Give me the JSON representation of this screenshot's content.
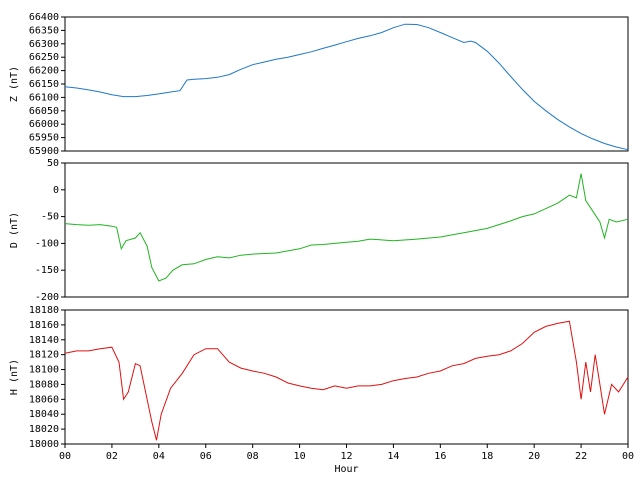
{
  "chart_data": [
    {
      "type": "line",
      "ylabel": "Z (nT)",
      "color": "#1f78c8",
      "xlim": [
        0,
        24
      ],
      "ylim": [
        65900,
        66400
      ],
      "yticks": [
        65900,
        65950,
        66000,
        66050,
        66100,
        66150,
        66200,
        66250,
        66300,
        66350,
        66400
      ],
      "x": [
        0,
        0.5,
        1,
        1.5,
        2,
        2.5,
        3,
        3.5,
        4,
        4.5,
        4.9,
        5.2,
        5.5,
        6,
        6.5,
        7,
        7.5,
        8,
        8.5,
        9,
        9.5,
        10,
        10.5,
        11,
        11.5,
        12,
        12.5,
        13,
        13.5,
        14,
        14.5,
        15,
        15.5,
        16,
        16.5,
        17,
        17.3,
        17.5,
        18,
        18.5,
        19,
        19.5,
        20,
        20.5,
        21,
        21.5,
        22,
        22.5,
        23,
        23.5,
        24
      ],
      "values": [
        66140,
        66135,
        66128,
        66120,
        66110,
        66103,
        66103,
        66107,
        66113,
        66120,
        66125,
        66165,
        66168,
        66170,
        66175,
        66185,
        66205,
        66222,
        66232,
        66242,
        66250,
        66260,
        66270,
        66283,
        66295,
        66308,
        66320,
        66330,
        66342,
        66360,
        66373,
        66372,
        66360,
        66342,
        66323,
        66305,
        66310,
        66305,
        66272,
        66228,
        66178,
        66130,
        66085,
        66050,
        66018,
        65990,
        65965,
        65945,
        65928,
        65915,
        65905
      ]
    },
    {
      "type": "line",
      "ylabel": "D (nT)",
      "color": "#22b422",
      "xlim": [
        0,
        24
      ],
      "ylim": [
        -200,
        50
      ],
      "yticks": [
        -200,
        -150,
        -100,
        -50,
        0,
        50
      ],
      "x": [
        0,
        0.5,
        1,
        1.5,
        2,
        2.2,
        2.4,
        2.6,
        3,
        3.2,
        3.5,
        3.7,
        4,
        4.3,
        4.6,
        5,
        5.5,
        6,
        6.5,
        7,
        7.5,
        8,
        9,
        10,
        10.5,
        11,
        12,
        12.5,
        13,
        14,
        15,
        16,
        17,
        18,
        18.5,
        19,
        19.5,
        20,
        20.5,
        21,
        21.5,
        21.8,
        22,
        22.2,
        22.5,
        22.8,
        23,
        23.2,
        23.5,
        24
      ],
      "values": [
        -63,
        -65,
        -66,
        -65,
        -68,
        -70,
        -110,
        -95,
        -90,
        -80,
        -105,
        -145,
        -170,
        -165,
        -150,
        -140,
        -138,
        -130,
        -125,
        -127,
        -122,
        -120,
        -118,
        -110,
        -103,
        -102,
        -98,
        -96,
        -92,
        -95,
        -92,
        -88,
        -80,
        -72,
        -65,
        -58,
        -50,
        -45,
        -35,
        -25,
        -10,
        -15,
        30,
        -20,
        -40,
        -60,
        -90,
        -55,
        -60,
        -55
      ]
    },
    {
      "type": "line",
      "ylabel": "H (nT)",
      "xlabel": "Hour",
      "color": "#e01010",
      "xlim": [
        0,
        24
      ],
      "ylim": [
        18000,
        18180
      ],
      "yticks": [
        18000,
        18020,
        18040,
        18060,
        18080,
        18100,
        18120,
        18140,
        18160,
        18180
      ],
      "xticks": [
        {
          "value": 0,
          "label": "00"
        },
        {
          "value": 2,
          "label": "02"
        },
        {
          "value": 4,
          "label": "04"
        },
        {
          "value": 6,
          "label": "06"
        },
        {
          "value": 8,
          "label": "08"
        },
        10,
        12,
        14,
        16,
        18,
        20,
        22,
        {
          "value": 24,
          "label": "00"
        }
      ],
      "x": [
        0,
        0.5,
        1,
        1.5,
        2,
        2.3,
        2.5,
        2.7,
        3,
        3.2,
        3.5,
        3.7,
        3.9,
        4.1,
        4.5,
        5,
        5.5,
        6,
        6.5,
        7,
        7.5,
        8,
        8.5,
        9,
        9.5,
        10,
        10.5,
        11,
        11.5,
        12,
        12.5,
        13,
        13.5,
        14,
        14.5,
        15,
        15.5,
        16,
        16.5,
        17,
        17.5,
        18,
        18.5,
        19,
        19.5,
        20,
        20.5,
        21,
        21.5,
        21.8,
        22,
        22.2,
        22.4,
        22.6,
        22.8,
        23,
        23.3,
        23.6,
        24
      ],
      "values": [
        18122,
        18125,
        18125,
        18128,
        18130,
        18110,
        18060,
        18070,
        18108,
        18105,
        18060,
        18030,
        18005,
        18040,
        18075,
        18095,
        18120,
        18128,
        18128,
        18110,
        18102,
        18098,
        18095,
        18090,
        18082,
        18078,
        18075,
        18073,
        18078,
        18075,
        18078,
        18078,
        18080,
        18085,
        18088,
        18090,
        18095,
        18098,
        18105,
        18108,
        18115,
        18118,
        18120,
        18125,
        18135,
        18150,
        18158,
        18162,
        18165,
        18110,
        18060,
        18110,
        18070,
        18120,
        18080,
        18040,
        18080,
        18070,
        18090
      ]
    }
  ]
}
